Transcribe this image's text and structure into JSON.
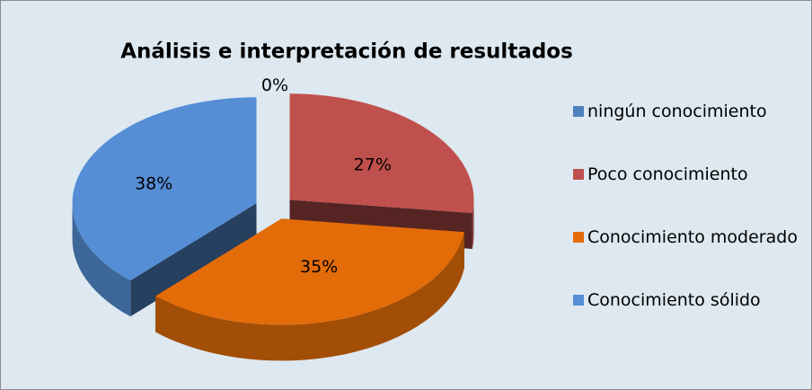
{
  "chart_data": {
    "type": "pie",
    "title": "Análisis e interpretación de resultados",
    "categories": [
      "ningún conocimiento",
      "Poco conocimiento",
      "Conocimiento moderado",
      "Conocimiento sólido"
    ],
    "values": [
      0,
      27,
      35,
      38
    ],
    "value_labels": [
      "0%",
      "27%",
      "35%",
      "38%"
    ],
    "colors": [
      "#4f81bd",
      "#c0504d",
      "#e36c09",
      "#558ed5"
    ]
  }
}
